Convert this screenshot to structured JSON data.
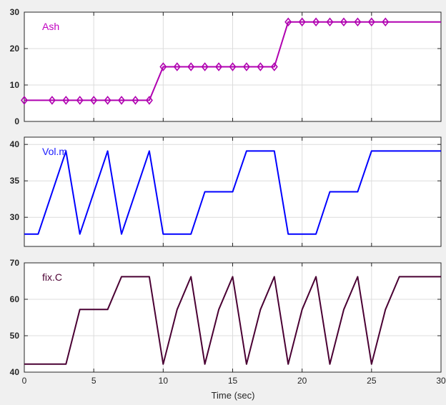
{
  "chart_data": [
    {
      "type": "line",
      "label": "Ash",
      "label_color": "#c000c0",
      "color": "#b000b0",
      "marker": "diamond",
      "xlim": [
        0,
        30
      ],
      "ylim": [
        0,
        30
      ],
      "yticks": [
        0,
        10,
        20,
        30
      ],
      "grid": true,
      "x": [
        0,
        2,
        3,
        4,
        5,
        6,
        7,
        8,
        9,
        10,
        11,
        12,
        13,
        14,
        15,
        16,
        17,
        18,
        19,
        20,
        21,
        22,
        23,
        24,
        25,
        26,
        30
      ],
      "y": [
        5.8,
        5.8,
        5.8,
        5.8,
        5.8,
        5.8,
        5.8,
        5.8,
        5.8,
        15,
        15,
        15,
        15,
        15,
        15,
        15,
        15,
        15,
        27.3,
        27.3,
        27.3,
        27.3,
        27.3,
        27.3,
        27.3,
        27.3,
        27.3
      ],
      "marker_x": [
        0,
        2,
        3,
        4,
        5,
        6,
        7,
        8,
        9,
        10,
        11,
        12,
        13,
        14,
        15,
        16,
        17,
        18,
        19,
        20,
        21,
        22,
        23,
        24,
        25,
        26
      ]
    },
    {
      "type": "line",
      "label": "Vol.m",
      "label_color": "#1a1aff",
      "color": "#0000ff",
      "marker": "none",
      "xlim": [
        0,
        30
      ],
      "ylim": [
        26,
        41
      ],
      "yticks": [
        30,
        35,
        40
      ],
      "grid": true,
      "x": [
        0,
        1,
        3,
        4,
        6,
        7,
        9,
        10,
        12,
        13,
        15,
        16,
        18,
        19,
        21,
        22,
        24,
        25,
        30
      ],
      "y": [
        27.7,
        27.7,
        39.1,
        27.7,
        39.1,
        27.7,
        39.1,
        27.7,
        27.7,
        33.5,
        33.5,
        39.1,
        39.1,
        27.7,
        27.7,
        33.5,
        33.5,
        39.1,
        39.1
      ]
    },
    {
      "type": "line",
      "label": "fix.C",
      "label_color": "#4d0033",
      "color": "#4a0033",
      "marker": "none",
      "xlim": [
        0,
        30
      ],
      "ylim": [
        40,
        70
      ],
      "yticks": [
        40,
        50,
        60,
        70
      ],
      "xticks": [
        0,
        5,
        10,
        15,
        20,
        25,
        30
      ],
      "grid": true,
      "x": [
        0,
        3,
        4,
        6,
        7,
        9,
        10,
        11,
        12,
        13,
        14,
        15,
        16,
        17,
        18,
        19,
        20,
        21,
        22,
        23,
        24,
        25,
        26,
        27,
        30
      ],
      "y": [
        42.2,
        42.2,
        57.2,
        57.2,
        66.2,
        66.2,
        42.2,
        57.2,
        66.2,
        42.2,
        57.2,
        66.2,
        42.2,
        57.2,
        66.2,
        42.2,
        57.2,
        66.2,
        42.2,
        57.2,
        66.2,
        42.2,
        57.2,
        66.2,
        66.2
      ]
    }
  ],
  "xlabel": "Time (sec)"
}
